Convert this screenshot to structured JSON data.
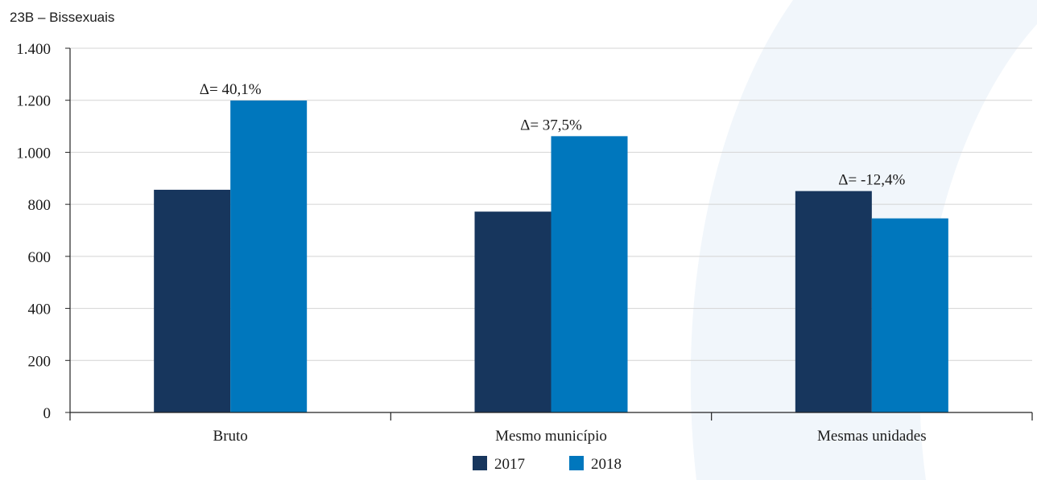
{
  "chart_data": {
    "type": "bar",
    "title": "23B – Bissexuais",
    "categories": [
      "Bruto",
      "Mesmo município",
      "Mesmas unidades"
    ],
    "series": [
      {
        "name": "2017",
        "color": "#17365d",
        "values": [
          856,
          772,
          851
        ]
      },
      {
        "name": "2018",
        "color": "#0077bd",
        "values": [
          1199,
          1062,
          746
        ]
      }
    ],
    "annotations": [
      "Δ= 40,1%",
      "Δ= 37,5%",
      "Δ= -12,4%"
    ],
    "ylim": [
      0,
      1400
    ],
    "yticks": [
      0,
      200,
      400,
      600,
      800,
      1000,
      1200,
      1400
    ],
    "ytick_labels": [
      "0",
      "200",
      "400",
      "600",
      "800",
      "1.000",
      "1.200",
      "1.400"
    ],
    "grid": true,
    "legend_position": "bottom-center",
    "xlabel": "",
    "ylabel": ""
  }
}
